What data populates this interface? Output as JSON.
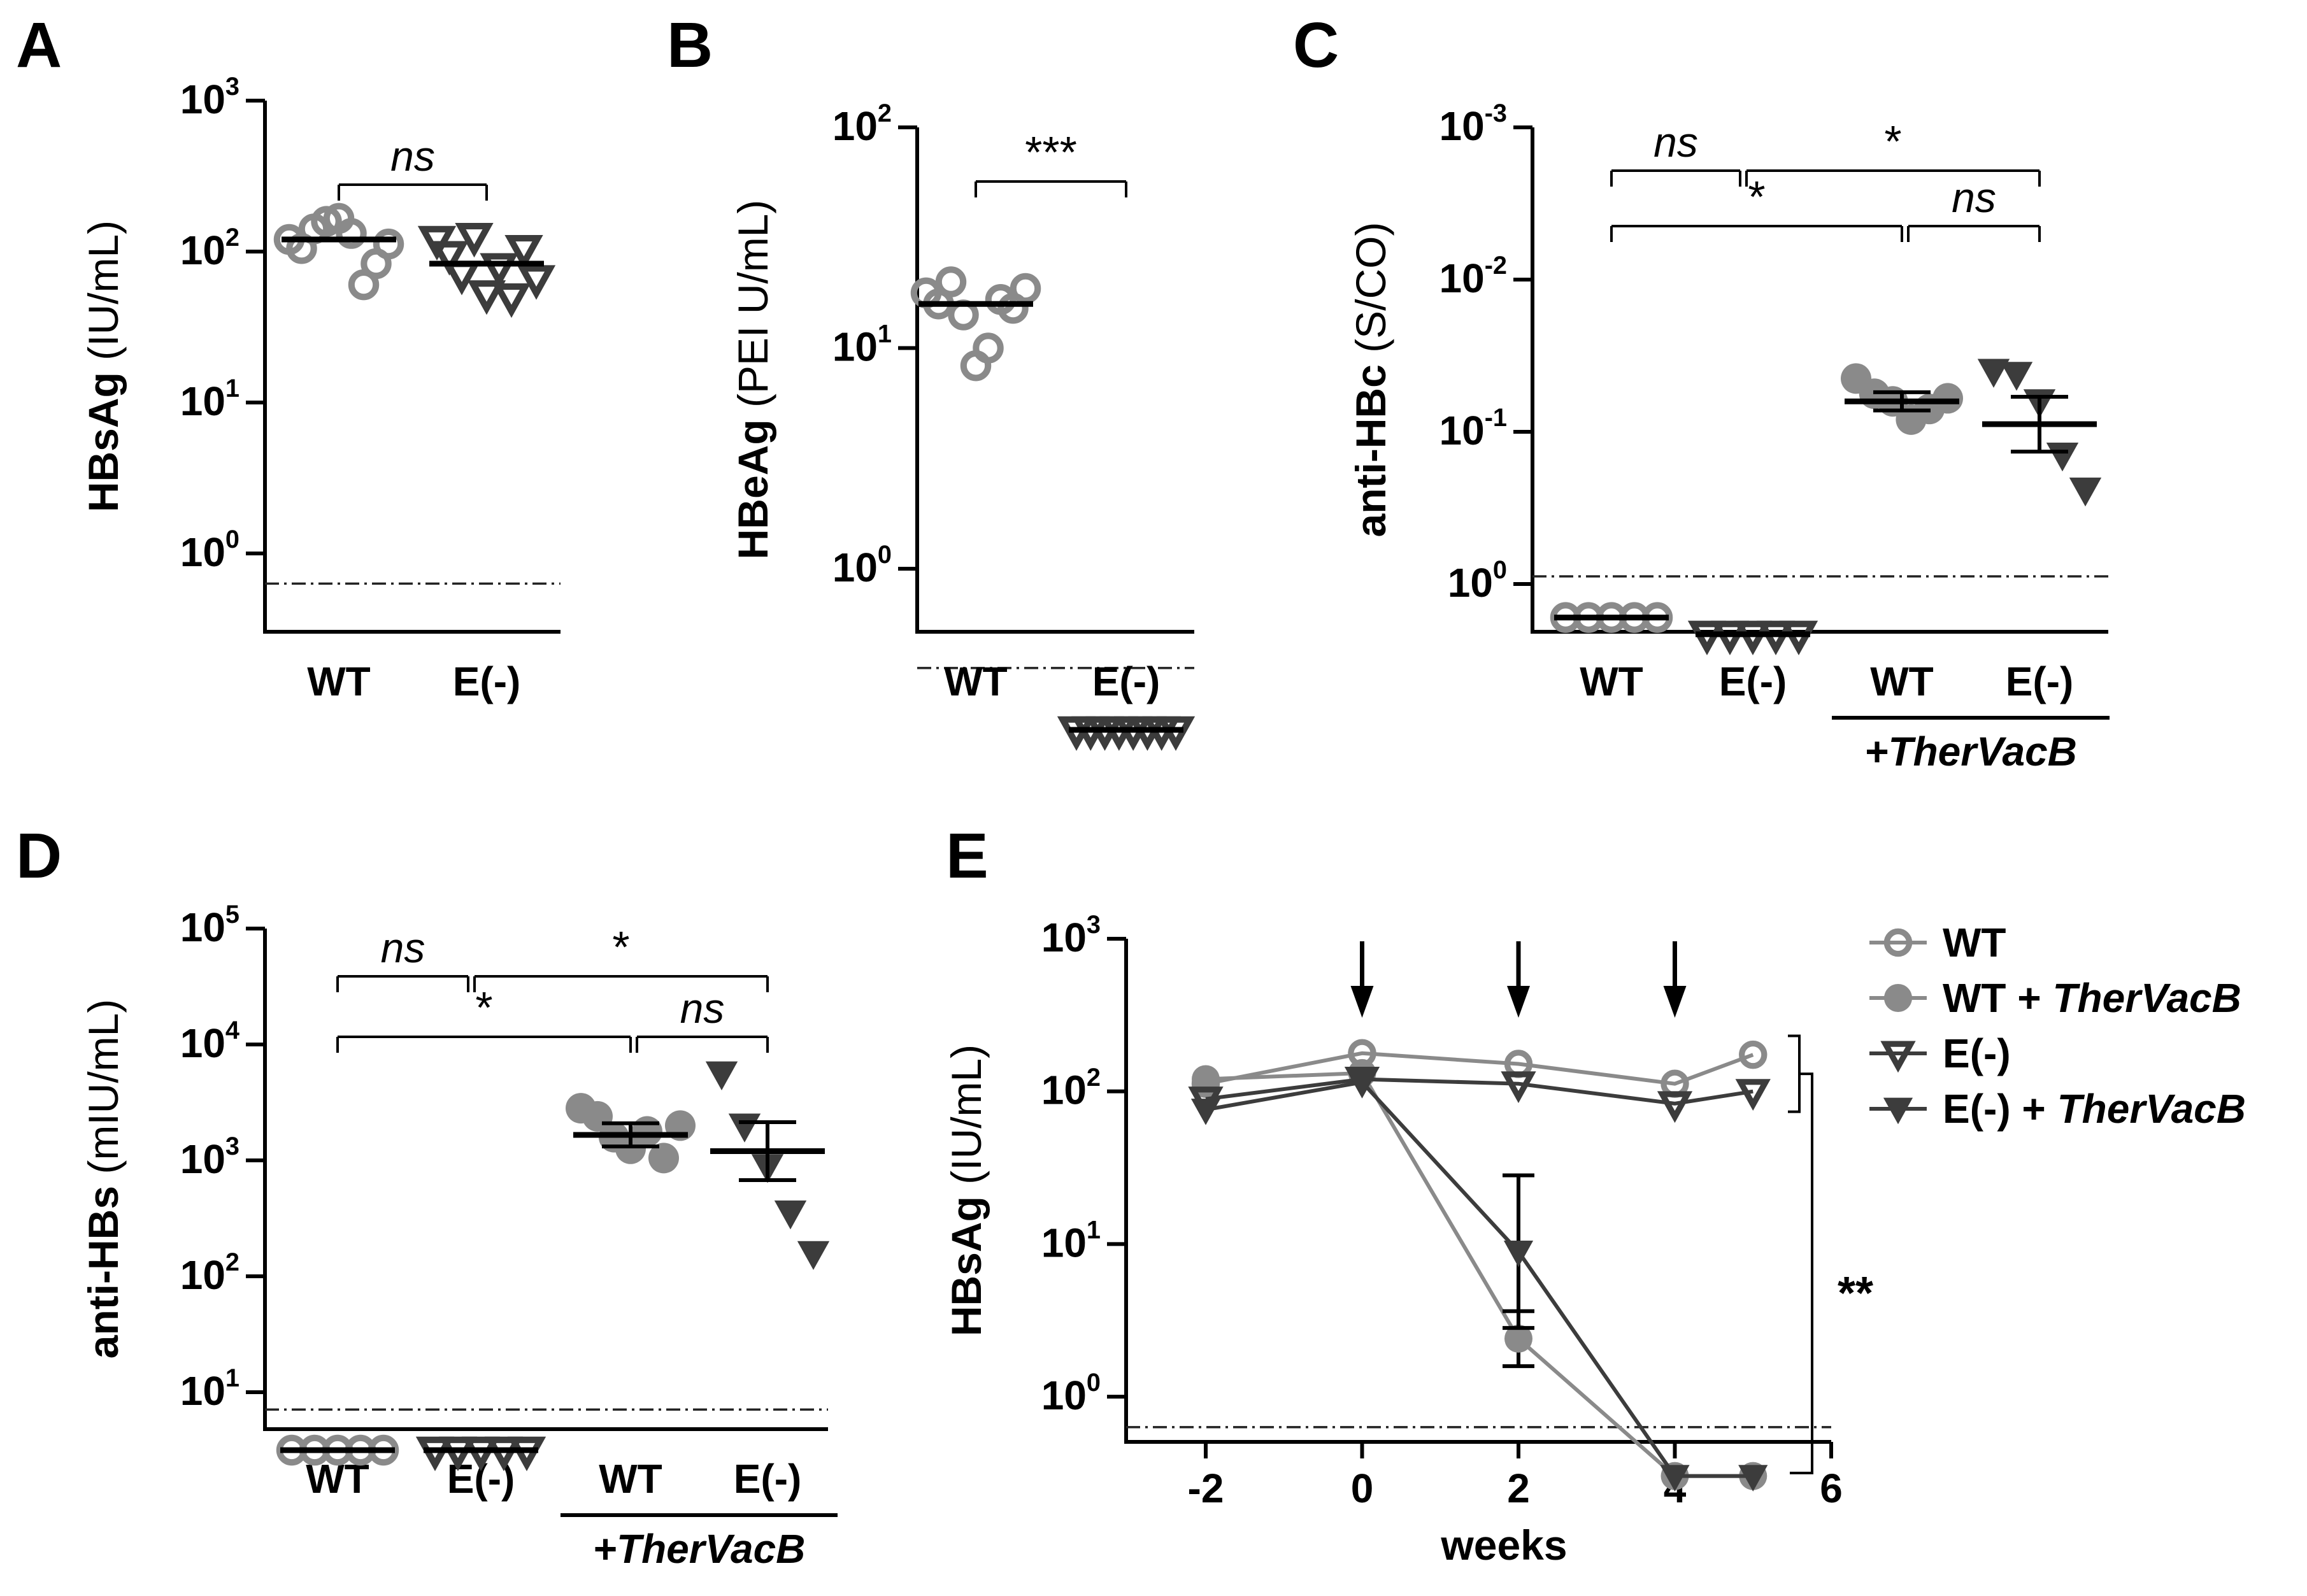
{
  "colors": {
    "wt": "#8a8a8a",
    "e": "#3c3c3c",
    "black": "#000000"
  },
  "chart_data": [
    {
      "panel": "A",
      "type": "scatter",
      "ylabel_main": "HBsAg",
      "ylabel_unit": "(IU/mL)",
      "yticks": [
        {
          "base": "10",
          "exp": "0",
          "value": 0
        },
        {
          "base": "10",
          "exp": "1",
          "value": 1
        },
        {
          "base": "10",
          "exp": "2",
          "value": 2
        },
        {
          "base": "10",
          "exp": "3",
          "value": 3
        }
      ],
      "categories": [
        "WT",
        "E(-)"
      ],
      "groups": [
        {
          "name": "WT",
          "marker": "circle-open",
          "color": "wt",
          "mean_log": 2.08,
          "points_log": [
            2.08,
            2.02,
            2.15,
            2.2,
            2.22,
            2.12,
            1.78,
            1.92,
            2.05
          ]
        },
        {
          "name": "E(-)",
          "marker": "triangle-down-open",
          "color": "e",
          "mean_log": 1.92,
          "points_log": [
            2.08,
            1.98,
            1.85,
            2.1,
            1.72,
            1.9,
            1.7,
            2.02,
            1.82
          ]
        }
      ],
      "lod_log": -0.2,
      "comparisons": [
        {
          "a": 0,
          "b": 1,
          "label": "ns"
        }
      ]
    },
    {
      "panel": "B",
      "type": "scatter",
      "ylabel_main": "HBeAg",
      "ylabel_unit": "(PEI U/mL)",
      "yticks": [
        {
          "base": "10",
          "exp": "0",
          "value": 0
        },
        {
          "base": "10",
          "exp": "1",
          "value": 1
        },
        {
          "base": "10",
          "exp": "2",
          "value": 2
        }
      ],
      "categories": [
        "WT",
        "E(-)"
      ],
      "groups": [
        {
          "name": "WT",
          "marker": "circle-open",
          "color": "wt",
          "mean_log": 1.2,
          "points_log": [
            1.25,
            1.2,
            1.3,
            1.15,
            0.92,
            1.0,
            1.22,
            1.18,
            1.27
          ]
        },
        {
          "name": "E(-)",
          "marker": "triangle-down-open",
          "color": "e",
          "mean_log": -0.73,
          "points_log": [
            -0.73,
            -0.73,
            -0.73,
            -0.73,
            -0.73,
            -0.73,
            -0.73,
            -0.73
          ]
        }
      ],
      "lod_log": -0.45,
      "comparisons": [
        {
          "a": 0,
          "b": 1,
          "label": "***"
        }
      ]
    },
    {
      "panel": "C",
      "type": "scatter",
      "ylabel_main": "anti-HBc",
      "ylabel_unit": "(S/CO)",
      "yticks": [
        {
          "base": "10",
          "exp": "0",
          "value": 0
        },
        {
          "base": "10",
          "exp": "-1",
          "value": 1
        },
        {
          "base": "10",
          "exp": "-2",
          "value": 2
        },
        {
          "base": "10",
          "exp": "-3",
          "value": 3
        }
      ],
      "categories": [
        "WT",
        "E(-)",
        "WT",
        "E(-)"
      ],
      "group_label": "+TherVacB",
      "groups": [
        {
          "name": "WT",
          "marker": "circle-open",
          "color": "wt",
          "mean_log": -0.22,
          "points_log": [
            -0.22,
            -0.22,
            -0.22,
            -0.22,
            -0.22
          ]
        },
        {
          "name": "E(-)",
          "marker": "triangle-down-open",
          "color": "e",
          "mean_log": -0.33,
          "points_log": [
            -0.33,
            -0.33,
            -0.33,
            -0.33,
            -0.33
          ]
        },
        {
          "name": "WT + TherVacB",
          "marker": "circle-filled",
          "color": "wt",
          "mean_log": 1.2,
          "sem_log": 0.06,
          "points_log": [
            1.35,
            1.25,
            1.2,
            1.08,
            1.15,
            1.22
          ]
        },
        {
          "name": "E(-) + TherVacB",
          "marker": "triangle-down-filled",
          "color": "e",
          "mean_log": 1.05,
          "sem_log": 0.18,
          "points_log": [
            1.4,
            1.38,
            1.2,
            0.85,
            0.62
          ]
        }
      ],
      "lod_log": 0.05,
      "comparisons": [
        {
          "a": 0,
          "b": 1,
          "label": "ns",
          "level": 2
        },
        {
          "a": 1,
          "b": 3,
          "label": "*",
          "level": 2
        },
        {
          "a": 0,
          "b": 2,
          "label": "*",
          "level": 1
        },
        {
          "a": 2,
          "b": 3,
          "label": "ns",
          "level": 1
        }
      ]
    },
    {
      "panel": "D",
      "type": "scatter",
      "ylabel_main": "anti-HBs",
      "ylabel_unit": "(mIU/mL)",
      "yticks": [
        {
          "base": "10",
          "exp": "1",
          "value": 1
        },
        {
          "base": "10",
          "exp": "2",
          "value": 2
        },
        {
          "base": "10",
          "exp": "3",
          "value": 3
        },
        {
          "base": "10",
          "exp": "4",
          "value": 4
        },
        {
          "base": "10",
          "exp": "5",
          "value": 5
        }
      ],
      "categories": [
        "WT",
        "E(-)",
        "WT",
        "E(-)"
      ],
      "group_label": "+TherVacB",
      "groups": [
        {
          "name": "WT",
          "marker": "circle-open",
          "color": "wt",
          "mean_log": 0.5,
          "points_log": [
            0.5,
            0.5,
            0.5,
            0.5,
            0.5
          ]
        },
        {
          "name": "E(-)",
          "marker": "triangle-down-open",
          "color": "e",
          "mean_log": 0.5,
          "points_log": [
            0.5,
            0.5,
            0.5,
            0.5,
            0.5
          ]
        },
        {
          "name": "WT + TherVacB",
          "marker": "circle-filled",
          "color": "wt",
          "mean_log": 3.22,
          "sem_log": 0.1,
          "points_log": [
            3.45,
            3.38,
            3.2,
            3.1,
            3.25,
            3.02,
            3.3
          ]
        },
        {
          "name": "E(-) + TherVacB",
          "marker": "triangle-down-filled",
          "color": "e",
          "mean_log": 3.08,
          "sem_log": 0.25,
          "points_log": [
            3.75,
            3.3,
            2.95,
            2.55,
            2.2
          ]
        }
      ],
      "lod_log": 0.85,
      "comparisons": [
        {
          "a": 0,
          "b": 1,
          "label": "ns",
          "level": 2
        },
        {
          "a": 1,
          "b": 3,
          "label": "*",
          "level": 2
        },
        {
          "a": 0,
          "b": 2,
          "label": "*",
          "level": 1
        },
        {
          "a": 2,
          "b": 3,
          "label": "ns",
          "level": 1
        }
      ]
    },
    {
      "panel": "E",
      "type": "line",
      "xlabel": "weeks",
      "ylabel_main": "HBsAg",
      "ylabel_unit": "(IU/mL)",
      "xticks": [
        "-2",
        "0",
        "2",
        "4",
        "6"
      ],
      "xlim": [
        -3,
        6
      ],
      "yticks": [
        {
          "base": "10",
          "exp": "0",
          "value": 0
        },
        {
          "base": "10",
          "exp": "1",
          "value": 1
        },
        {
          "base": "10",
          "exp": "2",
          "value": 2
        },
        {
          "base": "10",
          "exp": "3",
          "value": 3
        }
      ],
      "lod_log": -0.2,
      "vaccination_weeks": [
        0,
        2,
        4
      ],
      "series": [
        {
          "name": "WT",
          "marker": "circle-open",
          "color": "wt",
          "x": [
            -2,
            0,
            2,
            4,
            5
          ],
          "y_log": [
            2.05,
            2.25,
            2.18,
            2.05,
            2.24
          ]
        },
        {
          "name": "WT + TherVacB",
          "marker": "circle-filled",
          "color": "wt",
          "x": [
            -2,
            0,
            2,
            4,
            5
          ],
          "y_log": [
            2.08,
            2.12,
            0.38,
            -0.52,
            -0.52
          ],
          "err_log": [
            0,
            0,
            0.18,
            0,
            0
          ]
        },
        {
          "name": "E(-)",
          "marker": "triangle-down-open",
          "color": "e",
          "x": [
            -2,
            0,
            2,
            4,
            5
          ],
          "y_log": [
            1.95,
            2.08,
            2.05,
            1.92,
            2.0
          ]
        },
        {
          "name": "E(-) + TherVacB",
          "marker": "triangle-down-filled",
          "color": "e",
          "x": [
            -2,
            0,
            2,
            4,
            5
          ],
          "y_log": [
            1.88,
            2.06,
            0.95,
            -0.52,
            -0.52
          ],
          "err_log": [
            0,
            0,
            0.5,
            0,
            0
          ]
        }
      ],
      "legend_prefix": [
        {
          "text": "WT",
          "suffix": ""
        },
        {
          "text": "WT + ",
          "suffix": "TherVacB"
        },
        {
          "text": "E(-)",
          "suffix": ""
        },
        {
          "text": "E(-) + ",
          "suffix": "TherVacB"
        }
      ],
      "significance": "**"
    }
  ]
}
